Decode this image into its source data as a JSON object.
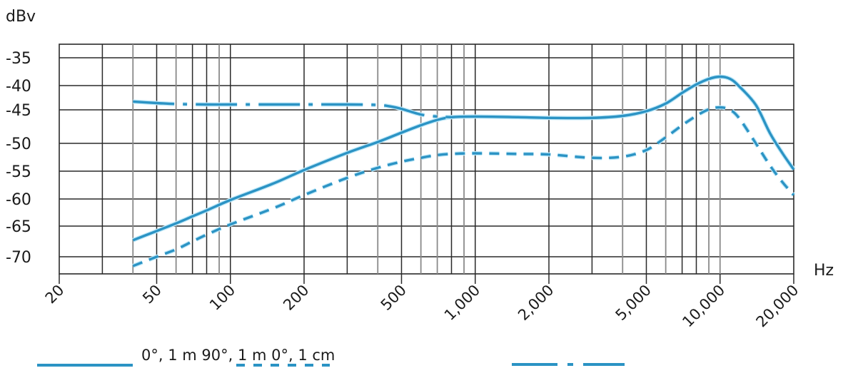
{
  "chart_data": {
    "type": "line",
    "title": "",
    "xlabel": "Hz",
    "ylabel": "dBv",
    "xscale": "log",
    "xlim": [
      20,
      20000
    ],
    "ylim": [
      -73,
      -32
    ],
    "grid": true,
    "y_ticks": [
      -35,
      -40,
      -45,
      -50,
      -55,
      -60,
      -65,
      -70
    ],
    "y_tick_labels": [
      "-35",
      "-40",
      "-45",
      "-50",
      "-55",
      "-60",
      "-65",
      "-70"
    ],
    "x_ticks": [
      20,
      50,
      100,
      200,
      500,
      1000,
      2000,
      5000,
      10000,
      20000
    ],
    "x_tick_labels": [
      "20",
      "50",
      "100",
      "200",
      "500",
      "1,000",
      "2,000",
      "5,000",
      "10,000",
      "20,000"
    ],
    "legend": {
      "position": "bottom",
      "text": "0°, 1 m 90°, 1 m 0°, 1 cm"
    },
    "series": [
      {
        "name": "0°, 1 m",
        "style": "solid",
        "x": [
          40,
          50,
          60,
          70,
          80,
          100,
          150,
          200,
          300,
          400,
          500,
          600,
          700,
          800,
          1000,
          1500,
          2000,
          3000,
          4000,
          5000,
          6000,
          7000,
          8000,
          9000,
          10000,
          11000,
          12000,
          14000,
          16000,
          18000,
          20000
        ],
        "values": [
          -67.3,
          -65.8,
          -64.5,
          -63.2,
          -62.1,
          -60.2,
          -57.2,
          -54.8,
          -51.7,
          -49.8,
          -48.4,
          -47.3,
          -46.5,
          -46.1,
          -46.0,
          -46.1,
          -46.2,
          -46.2,
          -45.9,
          -45.2,
          -43.7,
          -41.5,
          -39.8,
          -38.8,
          -38.4,
          -38.8,
          -40.2,
          -44.0,
          -48.5,
          -51.8,
          -54.7
        ]
      },
      {
        "name": "90°, 1 m",
        "style": "dashed",
        "x": [
          40,
          50,
          60,
          70,
          80,
          100,
          150,
          200,
          300,
          400,
          500,
          600,
          700,
          800,
          1000,
          1500,
          2000,
          3000,
          4000,
          5000,
          6000,
          7000,
          8000,
          9000,
          10000,
          11000,
          12000,
          14000,
          16000,
          18000,
          20000
        ],
        "values": [
          -71.5,
          -70.0,
          -68.8,
          -67.5,
          -66.4,
          -64.7,
          -61.7,
          -59.3,
          -56.2,
          -54.4,
          -53.3,
          -52.6,
          -52.1,
          -51.9,
          -51.8,
          -51.9,
          -52.0,
          -52.6,
          -52.4,
          -51.2,
          -49.1,
          -47.3,
          -45.9,
          -44.9,
          -44.5,
          -45.0,
          -46.3,
          -50.0,
          -54.0,
          -57.0,
          -59.3
        ]
      },
      {
        "name": "0°, 1 cm",
        "style": "dash-dot",
        "x": [
          40,
          50,
          60,
          80,
          100,
          150,
          200,
          300,
          400,
          450,
          500,
          600,
          700,
          800
        ],
        "values": [
          -43.3,
          -43.6,
          -43.8,
          -43.9,
          -43.9,
          -43.9,
          -43.9,
          -43.9,
          -44.0,
          -44.3,
          -44.8,
          -45.7,
          -46.0,
          -46.1
        ]
      }
    ]
  },
  "colors": {
    "line": "#2b93c4",
    "line_glow": "#bfe8f8",
    "grid_major": "#2a2a2a",
    "grid_minor": "#8a8a8a"
  }
}
